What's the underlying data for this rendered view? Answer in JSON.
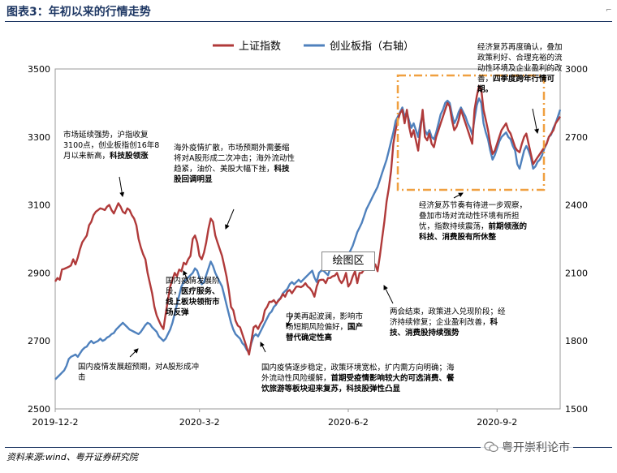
{
  "title": "图表3：年初以来的行情走势",
  "source": "资料来源:wind、粤开证券研究院",
  "watermark": "粤开崇利论市",
  "chart_data": {
    "type": "line",
    "x_ticks": [
      "2019-12-2",
      "2020-3-2",
      "2020-6-2",
      "2020-9-2"
    ],
    "y_left": {
      "ticks": [
        2500,
        2700,
        2900,
        3100,
        3300,
        3500
      ],
      "lim": [
        2500,
        3500
      ]
    },
    "y_right": {
      "ticks": [
        1500,
        1800,
        2100,
        2400,
        2700,
        3000
      ],
      "lim": [
        1500,
        3000
      ]
    },
    "legend_position": "top-center",
    "series": [
      {
        "name": "上证指数",
        "axis": "left",
        "color": "#b03a3a",
        "values": [
          2875,
          2885,
          2880,
          2910,
          2912,
          2915,
          2918,
          2922,
          2940,
          2925,
          2945,
          2970,
          2990,
          3000,
          3010,
          3040,
          3050,
          3070,
          3080,
          3085,
          3090,
          3088,
          3085,
          3095,
          3100,
          3085,
          3075,
          3090,
          3105,
          3095,
          3080,
          3075,
          3090,
          3085,
          3070,
          3060,
          3040,
          3000,
          2975,
          2955,
          2940,
          2900,
          2870,
          2840,
          2800,
          2775,
          2760,
          2745,
          2735,
          2780,
          2820,
          2860,
          2880,
          2900,
          2890,
          2910,
          2905,
          2930,
          2925,
          2940,
          2950,
          3000,
          3010,
          2990,
          2950,
          2940,
          2960,
          2990,
          3030,
          3060,
          3050,
          3010,
          2990,
          2970,
          2950,
          2920,
          2890,
          2850,
          2800,
          2790,
          2760,
          2745,
          2740,
          2720,
          2700,
          2680,
          2660,
          2700,
          2740,
          2745,
          2735,
          2750,
          2760,
          2790,
          2800,
          2815,
          2815,
          2820,
          2810,
          2818,
          2825,
          2838,
          2830,
          2845,
          2850,
          2840,
          2850,
          2860,
          2860,
          2858,
          2862,
          2870,
          2860,
          2855,
          2845,
          2830,
          2860,
          2878,
          2880,
          2880,
          2870,
          2885,
          2885,
          2890,
          2892,
          2900,
          2880,
          2870,
          2880,
          2900,
          2860,
          2870,
          2890,
          2905,
          2870,
          2900,
          2900,
          2910,
          2920,
          2930,
          2925,
          2915,
          2925,
          2905,
          2950,
          3000,
          3050,
          3110,
          3150,
          3200,
          3280,
          3320,
          3350,
          3370,
          3380,
          3340,
          3380,
          3330,
          3300,
          3320,
          3290,
          3260,
          3320,
          3380,
          3300,
          3290,
          3310,
          3280,
          3270,
          3300,
          3320,
          3340,
          3360,
          3380,
          3400,
          3390,
          3350,
          3320,
          3330,
          3350,
          3380,
          3360,
          3340,
          3320,
          3300,
          3280,
          3380,
          3420,
          3450,
          3440,
          3380,
          3350,
          3320,
          3280,
          3250,
          3260,
          3280,
          3300,
          3320,
          3330,
          3340,
          3320,
          3310,
          3290,
          3270,
          3260,
          3255,
          3280,
          3300,
          3310,
          3280,
          3250,
          3220,
          3230,
          3240,
          3250,
          3260,
          3270,
          3280,
          3300,
          3310,
          3320,
          3340,
          3350,
          3360
        ]
      },
      {
        "name": "创业板指（右轴）",
        "axis": "right",
        "color": "#4f81bd",
        "values": [
          1630,
          1640,
          1650,
          1660,
          1670,
          1690,
          1720,
          1730,
          1735,
          1740,
          1730,
          1745,
          1760,
          1770,
          1775,
          1790,
          1800,
          1790,
          1795,
          1800,
          1810,
          1800,
          1805,
          1815,
          1820,
          1830,
          1835,
          1850,
          1860,
          1870,
          1880,
          1870,
          1860,
          1850,
          1845,
          1840,
          1835,
          1830,
          1840,
          1855,
          1870,
          1880,
          1875,
          1860,
          1850,
          1840,
          1820,
          1810,
          1800,
          1810,
          1830,
          1850,
          1880,
          1920,
          1960,
          2000,
          2040,
          2060,
          2070,
          2080,
          2090,
          2100,
          2120,
          2110,
          2080,
          2050,
          2060,
          2090,
          2120,
          2150,
          2130,
          2100,
          2080,
          2060,
          2040,
          2000,
          1960,
          1920,
          1880,
          1850,
          1830,
          1820,
          1810,
          1790,
          1780,
          1760,
          1750,
          1790,
          1820,
          1830,
          1820,
          1840,
          1860,
          1880,
          1900,
          1920,
          1930,
          1950,
          1960,
          1980,
          1990,
          2010,
          2020,
          2030,
          2050,
          2060,
          2050,
          2060,
          2070,
          2060,
          2070,
          2080,
          2090,
          2100,
          2110,
          2080,
          2060,
          2100,
          2110,
          2110,
          2100,
          2090,
          2120,
          2130,
          2150,
          2160,
          2170,
          2160,
          2150,
          2170,
          2180,
          2200,
          2220,
          2250,
          2280,
          2300,
          2320,
          2350,
          2380,
          2400,
          2420,
          2440,
          2460,
          2480,
          2510,
          2540,
          2570,
          2600,
          2640,
          2680,
          2720,
          2770,
          2790,
          2810,
          2830,
          2790,
          2810,
          2770,
          2740,
          2760,
          2730,
          2700,
          2760,
          2800,
          2730,
          2710,
          2730,
          2700,
          2690,
          2720,
          2760,
          2800,
          2820,
          2850,
          2860,
          2850,
          2800,
          2760,
          2780,
          2810,
          2830,
          2810,
          2790,
          2760,
          2740,
          2710,
          2780,
          2840,
          2870,
          2850,
          2760,
          2720,
          2690,
          2640,
          2600,
          2620,
          2650,
          2680,
          2700,
          2710,
          2720,
          2700,
          2690,
          2660,
          2640,
          2580,
          2560,
          2600,
          2640,
          2660,
          2640,
          2610,
          2560,
          2570,
          2590,
          2600,
          2620,
          2650,
          2670,
          2700,
          2710,
          2740,
          2760,
          2790,
          2820
        ]
      }
    ],
    "annotations": [
      "市场延续强势，沪指收复3100点，创业板指创16年8月以来新高，科技股领涨",
      "海外疫情扩散，市场预期外需萎缩将对A股形成二次冲击；海外流动性趋紧，油价、美股大幅下挫，科技股回调明显",
      "国内疫情发展阶段，医疗服务、线上板块领衔市场反弹",
      "国内疫情发展超预期，对A股形成冲击",
      "中美再起波澜，影响市场短期风险偏好，国产替代确定性高",
      "国内疫情逐步稳定，政策环境宽松，扩内需方向明确；海外流动性风险缓解，首期受疫情影响较大的可选消费、餐饮旅游等板块迎来复苏，科技股弹性凸显",
      "两会结束，政策进入兑现阶段；经济持续修复；企业盈利改善，科技、消费股持续强势",
      "经济复苏节奏有待进一步观察，叠加市场对流动性环境有所担忧，指数持续震荡，前期领涨的科技、消费股有所休整",
      "经济复苏再度确认，叠加政策利好、合理充裕的流动性环境及企业盈利的改善，四季度跨年行情可期。"
    ],
    "tooltip": "绘图区"
  }
}
